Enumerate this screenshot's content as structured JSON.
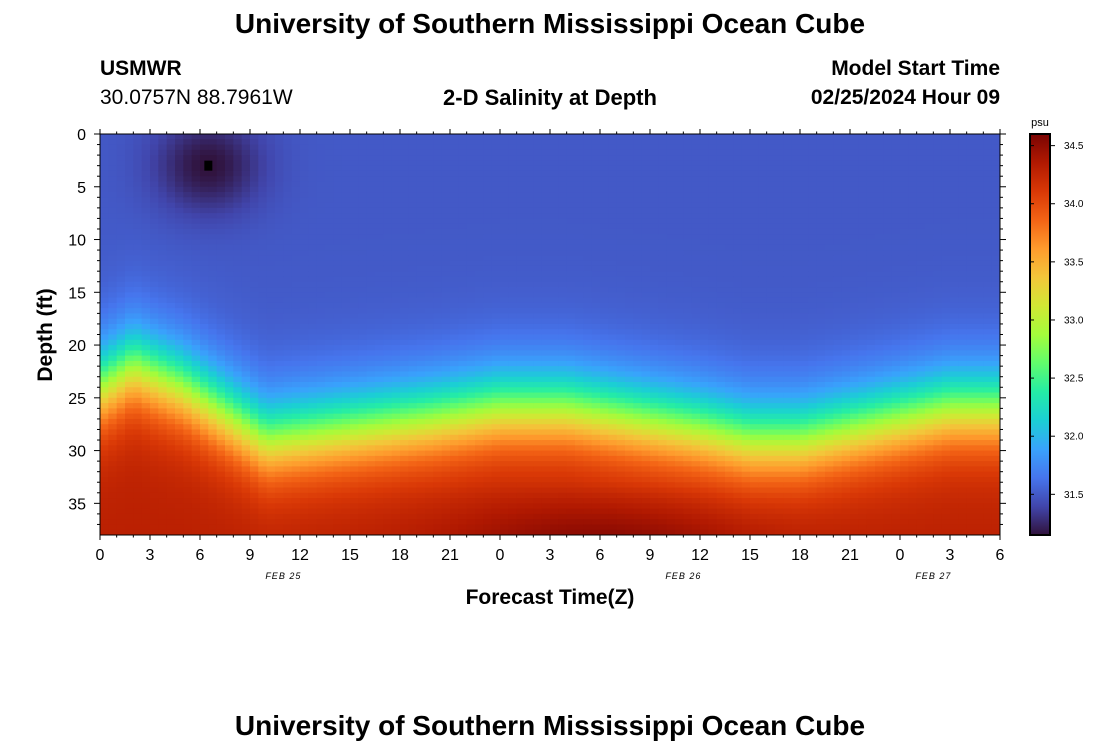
{
  "header": {
    "title": "University of Southern Mississippi Ocean Cube",
    "station": "USMWR",
    "coords": "30.0757N  88.7961W",
    "plot_title": "2-D Salinity at Depth",
    "model_label": "Model Start Time",
    "model_time": "02/25/2024 Hour 09"
  },
  "footer": {
    "title": "University of Southern Mississippi Ocean Cube"
  },
  "colors": {
    "colormap": [
      "#30123b",
      "#4145ab",
      "#4675ed",
      "#39a2fc",
      "#1bcfd4",
      "#24eca6",
      "#61fc6c",
      "#a4fc3b",
      "#d1e834",
      "#f3c63a",
      "#fe9b2d",
      "#f36315",
      "#d93806",
      "#b11901",
      "#7a0403"
    ]
  },
  "chart_data": {
    "type": "heatmap",
    "xlabel": "Forecast Time(Z)",
    "ylabel": "Depth (ft)",
    "colorbar_unit": "psu",
    "x_tick_labels": [
      "0",
      "3",
      "6",
      "9",
      "12",
      "15",
      "18",
      "21",
      "0",
      "3",
      "6",
      "9",
      "12",
      "15",
      "18",
      "21",
      "0",
      "3",
      "6"
    ],
    "date_labels": [
      {
        "label": "FEB 25",
        "hour": 11
      },
      {
        "label": "FEB 26",
        "hour": 35
      },
      {
        "label": "FEB 27",
        "hour": 50
      }
    ],
    "xlim": [
      0,
      54
    ],
    "ylim": [
      0,
      38
    ],
    "y_ticks": [
      "0",
      "5",
      "10",
      "15",
      "20",
      "25",
      "30",
      "35"
    ],
    "clim": [
      31.15,
      34.6
    ],
    "colorbar_ticks": [
      "31.5",
      "32.0",
      "32.5",
      "33.0",
      "33.5",
      "34.0",
      "34.5"
    ],
    "marker": {
      "hour": 6.5,
      "depth": 3
    },
    "halocline_depth_by_hour": {
      "hours": [
        0,
        2,
        5,
        10,
        15,
        20,
        24,
        28,
        32,
        36,
        39,
        42,
        45,
        48,
        51,
        54
      ],
      "depth": [
        24,
        22,
        24,
        29,
        28,
        27,
        26,
        26,
        27,
        28,
        29,
        29,
        28,
        27,
        26,
        26
      ]
    },
    "surface_salinity_psu": 31.5,
    "bottom_salinity_psu": 34.3,
    "fresh_pocket": {
      "hour": 6.5,
      "depth": 3,
      "min_salinity_psu": 31.15
    }
  }
}
